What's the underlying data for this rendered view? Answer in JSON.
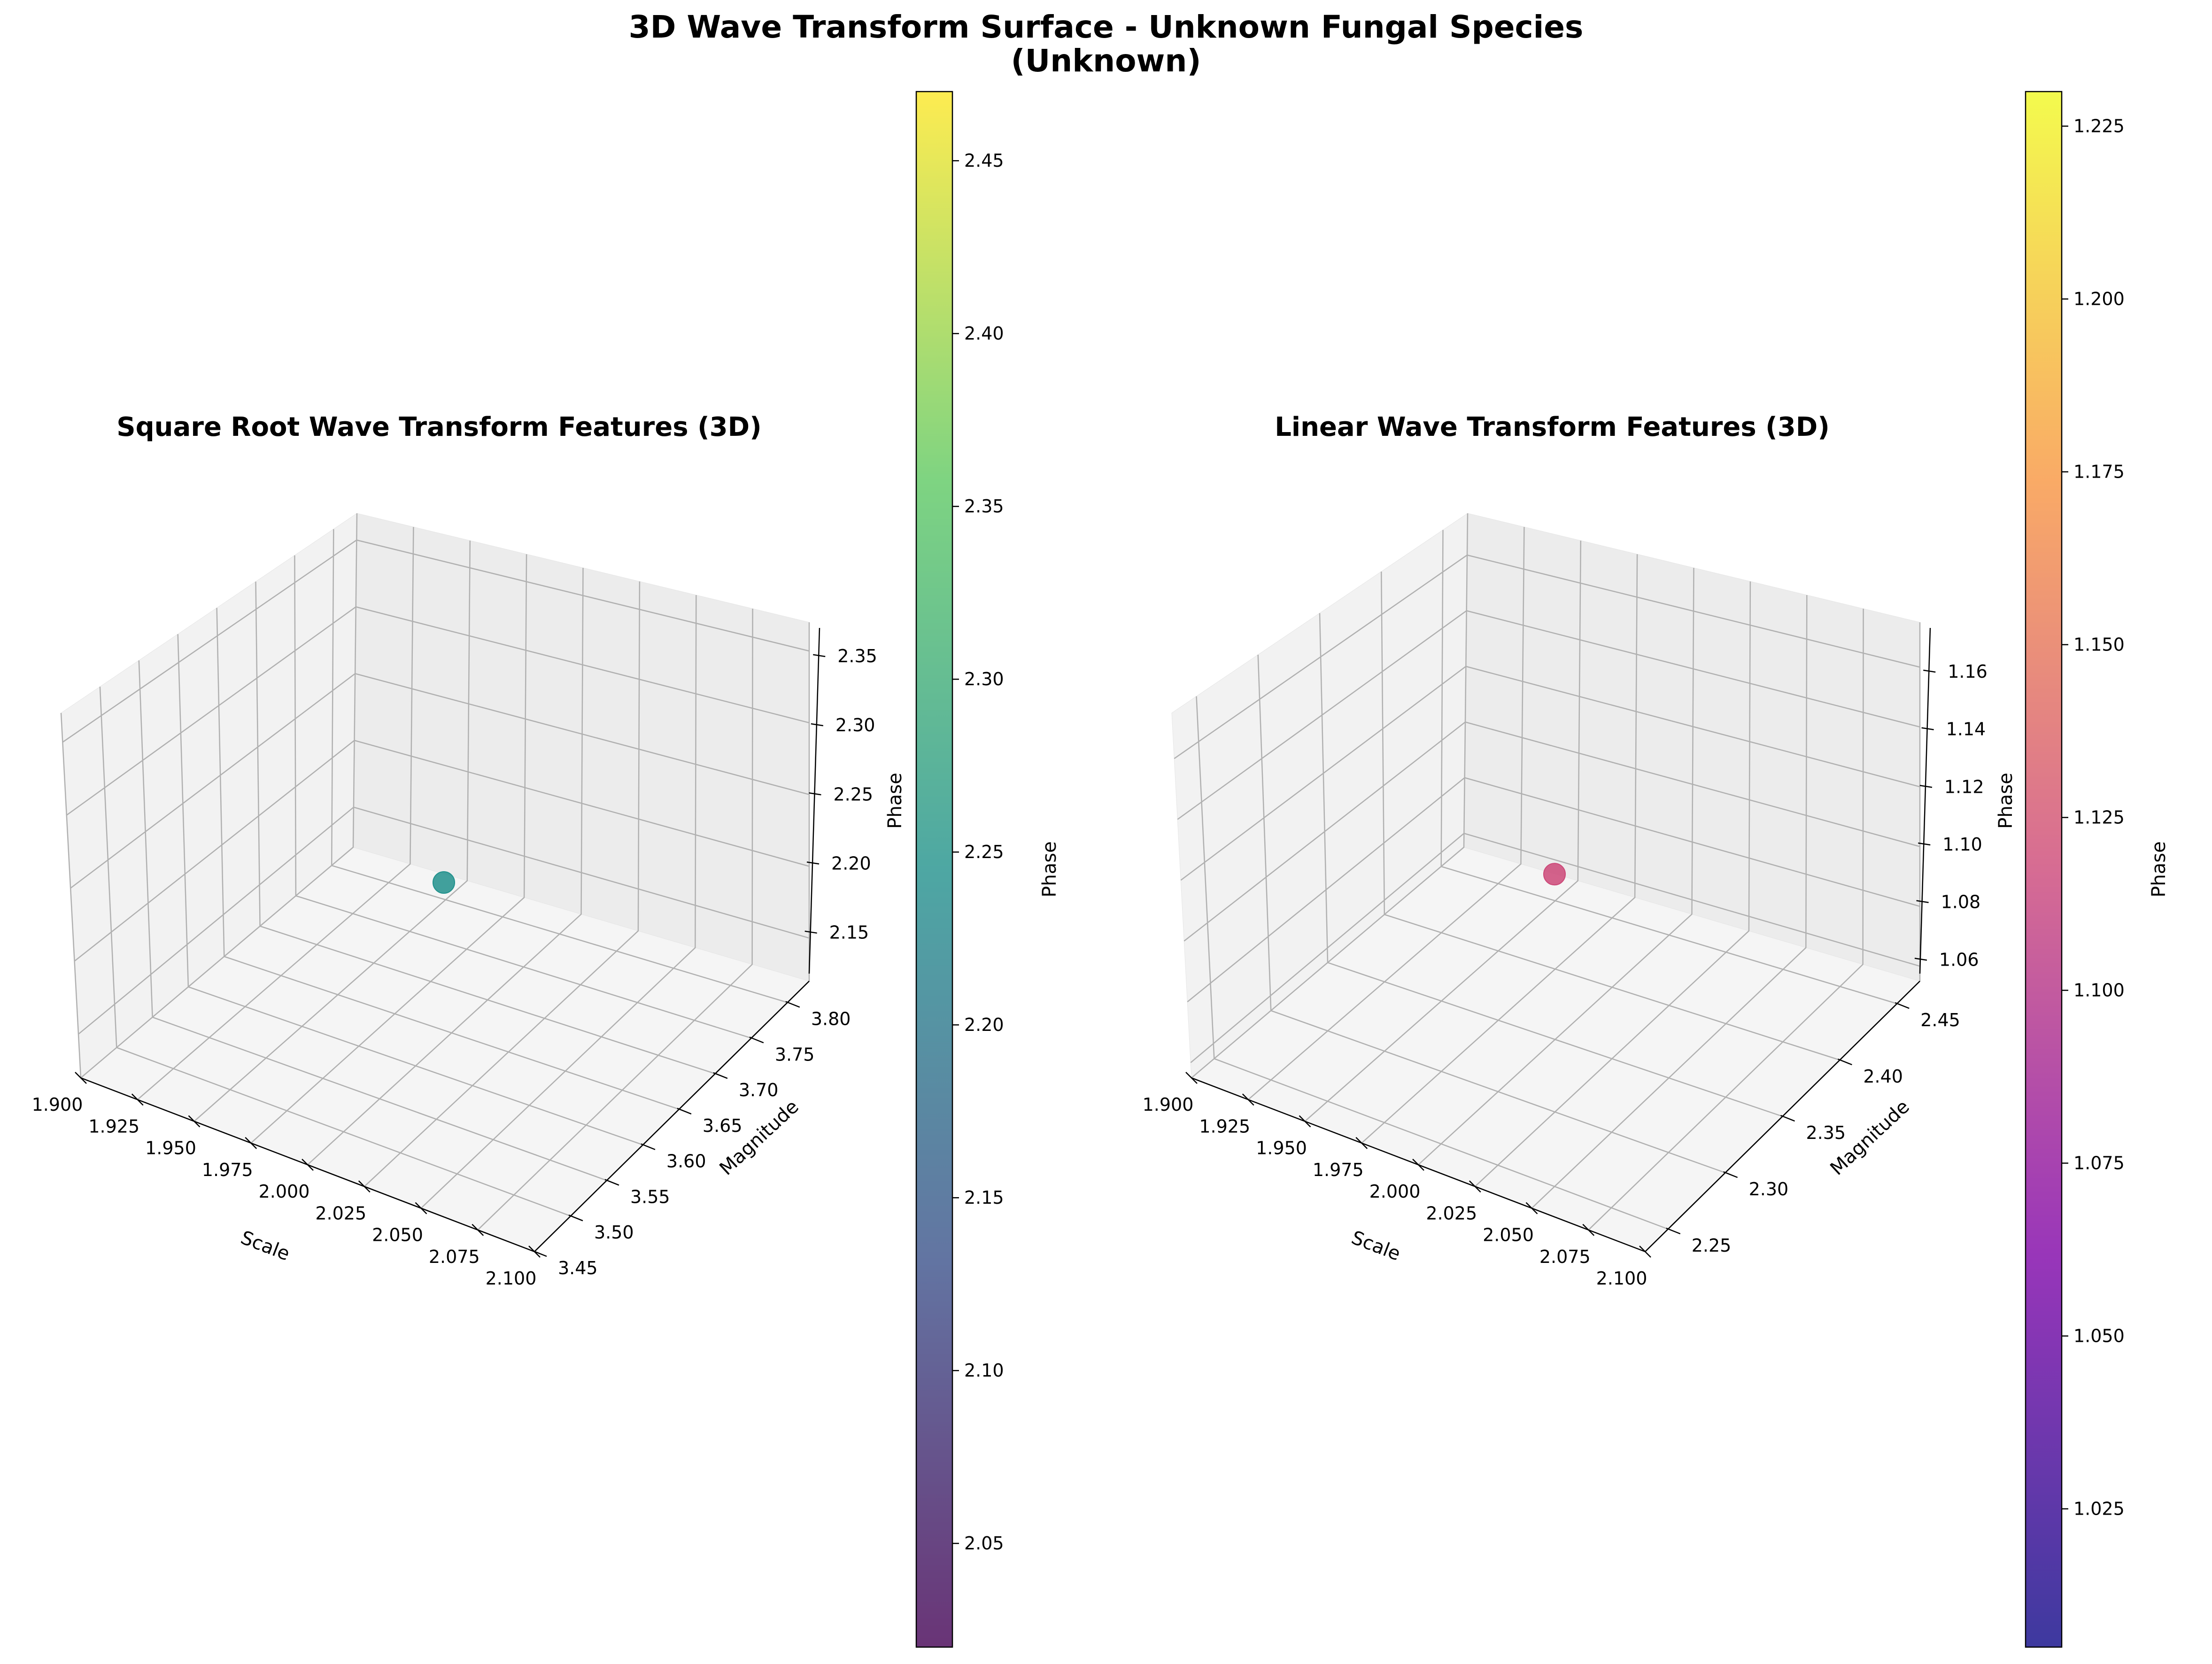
{
  "figure": {
    "title_line1": "3D Wave Transform Surface - Unknown Fungal Species",
    "title_line2": "(Unknown)"
  },
  "chart_data": [
    {
      "type": "scatter",
      "projection": "3d",
      "title": "Square Root Wave Transform Features (3D)",
      "xlabel": "Scale",
      "ylabel": "Magnitude",
      "zlabel": "Phase",
      "xlim": [
        1.9,
        2.1
      ],
      "ylim": [
        3.45,
        3.83
      ],
      "zlim": [
        2.12,
        2.37
      ],
      "xticks": [
        "1.900",
        "1.925",
        "1.950",
        "1.975",
        "2.000",
        "2.025",
        "2.050",
        "2.075",
        "2.100"
      ],
      "yticks": [
        "3.45",
        "3.50",
        "3.55",
        "3.60",
        "3.65",
        "3.70",
        "3.75",
        "3.80"
      ],
      "zticks": [
        "2.15",
        "2.20",
        "2.25",
        "2.30",
        "2.35"
      ],
      "points": [
        {
          "x": 2.0,
          "y": 3.64,
          "z": 2.245,
          "phase": 2.245
        }
      ],
      "colorbar": {
        "label": "Phase",
        "colormap": "viridis",
        "range": [
          2.02,
          2.47
        ],
        "ticks": [
          "2.05",
          "2.10",
          "2.15",
          "2.20",
          "2.25",
          "2.30",
          "2.35",
          "2.40",
          "2.45"
        ]
      },
      "grid": true
    },
    {
      "type": "scatter",
      "projection": "3d",
      "title": "Linear Wave Transform Features (3D)",
      "xlabel": "Scale",
      "ylabel": "Magnitude",
      "zlabel": "Phase",
      "xlim": [
        1.9,
        2.1
      ],
      "ylim": [
        2.23,
        2.47
      ],
      "zlim": [
        1.055,
        1.175
      ],
      "xticks": [
        "1.900",
        "1.925",
        "1.950",
        "1.975",
        "2.000",
        "2.025",
        "2.050",
        "2.075",
        "2.100"
      ],
      "yticks": [
        "2.25",
        "2.30",
        "2.35",
        "2.40",
        "2.45"
      ],
      "zticks": [
        "1.06",
        "1.08",
        "1.10",
        "1.12",
        "1.14",
        "1.16"
      ],
      "points": [
        {
          "x": 2.0,
          "y": 2.35,
          "z": 1.118,
          "phase": 1.118
        }
      ],
      "colorbar": {
        "label": "Phase",
        "colormap": "plasma",
        "range": [
          1.005,
          1.23
        ],
        "ticks": [
          "1.025",
          "1.050",
          "1.075",
          "1.100",
          "1.125",
          "1.150",
          "1.175",
          "1.200",
          "1.225"
        ]
      },
      "grid": true
    }
  ]
}
